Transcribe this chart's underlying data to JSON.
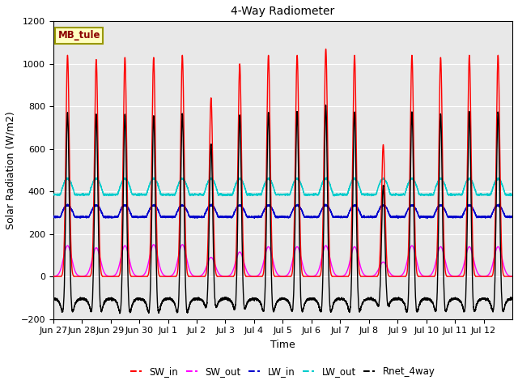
{
  "title": "4-Way Radiometer",
  "xlabel": "Time",
  "ylabel": "Solar Radiation (W/m2)",
  "ylim": [
    -200,
    1200
  ],
  "yticks": [
    -200,
    0,
    200,
    400,
    600,
    800,
    1000,
    1200
  ],
  "station_label": "MB_tule",
  "station_label_color": "#8B0000",
  "station_label_bg": "#FFFFC0",
  "station_label_border": "#999900",
  "plot_bg_color": "#E8E8E8",
  "colors": {
    "SW_in": "#FF0000",
    "SW_out": "#FF00FF",
    "LW_in": "#0000CC",
    "LW_out": "#00CCCC",
    "Rnet_4way": "#000000"
  },
  "x_tick_labels": [
    "Jun 27",
    "Jun 28",
    "Jun 29",
    "Jun 30",
    "Jul 1",
    "Jul 2",
    "Jul 3",
    "Jul 4",
    "Jul 5",
    "Jul 6",
    "Jul 7",
    "Jul 8",
    "Jul 9",
    "Jul 10",
    "Jul 11",
    "Jul 12"
  ],
  "num_days": 16,
  "SW_in_peaks": [
    1040,
    1020,
    1030,
    1030,
    1040,
    840,
    1000,
    1040,
    1040,
    1070,
    1040,
    620,
    1040,
    1030,
    1040,
    1040
  ],
  "SW_out_peaks": [
    145,
    135,
    145,
    150,
    150,
    90,
    115,
    140,
    140,
    145,
    140,
    68,
    145,
    140,
    140,
    140
  ],
  "LW_in_base": 280,
  "LW_in_peak_add": 55,
  "LW_out_base": 385,
  "LW_out_peak_add": 75,
  "line_width": 1.0,
  "grid_color": "#FFFFFF",
  "font_size": 9,
  "title_font_size": 10,
  "tick_font_size": 8
}
